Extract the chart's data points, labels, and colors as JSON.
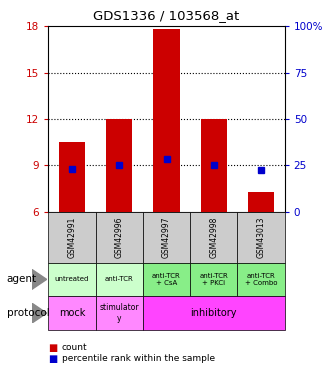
{
  "title": "GDS1336 / 103568_at",
  "samples": [
    "GSM42991",
    "GSM42996",
    "GSM42997",
    "GSM42998",
    "GSM43013"
  ],
  "bar_bottoms": [
    6,
    6,
    6,
    6,
    6
  ],
  "bar_tops": [
    10.5,
    12.0,
    17.8,
    12.0,
    7.3
  ],
  "percentile_values": [
    8.8,
    9.0,
    9.4,
    9.0,
    8.7
  ],
  "ylim_left": [
    6,
    18
  ],
  "ylim_right": [
    0,
    100
  ],
  "yticks_left": [
    6,
    9,
    12,
    15,
    18
  ],
  "yticks_right": [
    0,
    25,
    50,
    75,
    100
  ],
  "bar_color": "#cc0000",
  "percentile_color": "#0000cc",
  "agent_labels": [
    "untreated",
    "anti-TCR",
    "anti-TCR\n+ CsA",
    "anti-TCR\n+ PKCi",
    "anti-TCR\n+ Combo"
  ],
  "agent_color_light": "#ccffcc",
  "agent_color_dark": "#88ee88",
  "agent_colors_per_cell": [
    "#ccffcc",
    "#ccffcc",
    "#88ee88",
    "#88ee88",
    "#88ee88"
  ],
  "protocol_color_light": "#ff88ff",
  "protocol_color_dark": "#ff44ff",
  "sample_bg_color": "#cccccc",
  "left_label_color": "#cc0000",
  "right_label_color": "#0000cc",
  "legend_count_color": "#cc0000",
  "legend_pct_color": "#0000cc",
  "dotted_lines": [
    9,
    12,
    15
  ],
  "right_tick_labels": [
    "0",
    "25",
    "50",
    "75",
    "100%"
  ]
}
